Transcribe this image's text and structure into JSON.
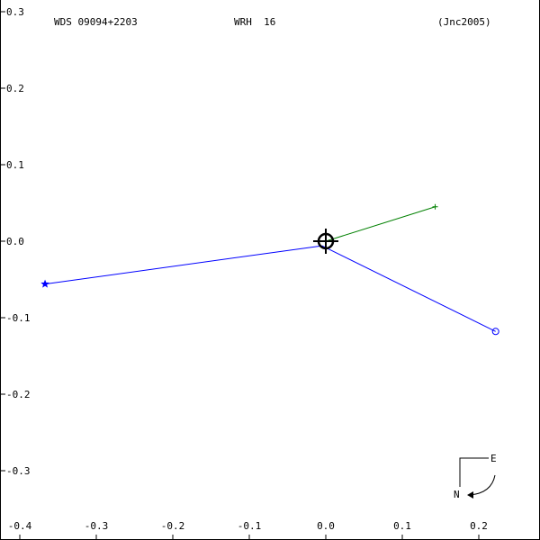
{
  "header": {
    "wds_id": "WDS 09094+2203",
    "discoverer": "WRH  16",
    "reference": "(Jnc2005)"
  },
  "compass": {
    "east_label": "E",
    "north_label": "N"
  },
  "chart_data": {
    "type": "scatter",
    "title": "",
    "xlabel": "",
    "ylabel": "",
    "xlim": [
      -0.4,
      0.28
    ],
    "ylim": [
      -0.37,
      0.31
    ],
    "x_ticks": [
      -0.4,
      -0.3,
      -0.2,
      -0.1,
      0.0,
      0.1,
      0.2
    ],
    "x_tick_labels": [
      "-0.4",
      "-0.3",
      "-0.2",
      "-0.1",
      "0.0",
      "0.1",
      "0.2"
    ],
    "y_ticks": [
      0.3,
      0.2,
      0.1,
      0.0,
      -0.1,
      -0.2,
      -0.3
    ],
    "y_tick_labels": [
      "0.3",
      "0.2",
      "0.1",
      "0.0",
      "-0.1",
      "-0.2",
      "-0.3"
    ],
    "grid": false,
    "primary_star": {
      "x": 0.0,
      "y": 0.0
    },
    "series": [
      {
        "marker": "star",
        "color": "#0000ff",
        "points": [
          {
            "x": -0.367,
            "y": -0.056
          }
        ],
        "connector_to": {
          "x": -0.005,
          "y": -0.006
        }
      },
      {
        "marker": "circle",
        "color": "#0000ff",
        "points": [
          {
            "x": 0.222,
            "y": -0.118
          }
        ],
        "connector_to": {
          "x": -0.005,
          "y": -0.006
        }
      },
      {
        "marker": "plus",
        "color": "#008000",
        "points": [
          {
            "x": 0.143,
            "y": 0.045
          }
        ],
        "connector_to": {
          "x": 0.0,
          "y": 0.0
        }
      }
    ]
  }
}
